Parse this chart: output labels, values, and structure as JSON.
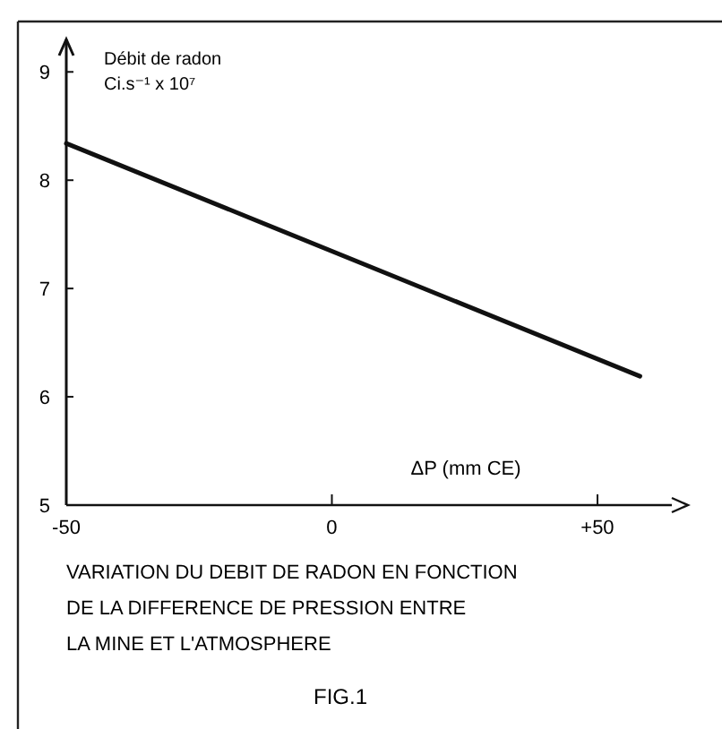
{
  "chart_data": {
    "type": "line",
    "ylabel": "Débit de radon\nCi.s⁻¹ x 10⁷",
    "xlabel": "ΔP (mm CE)",
    "x": [
      -50,
      58
    ],
    "series": [
      {
        "color": "#111111",
        "values": [
          8.34,
          6.19
        ]
      }
    ],
    "xlim": [
      -50,
      64
    ],
    "ylim": [
      5,
      9.3
    ],
    "xticks": [
      {
        "value": -50,
        "label": "-50"
      },
      0,
      {
        "value": 50,
        "label": "+50"
      }
    ],
    "yticks": [
      5,
      6,
      7,
      8,
      9
    ],
    "grid": false,
    "marker": "none",
    "line_style": "solid",
    "annotations": [
      "VARIATION DU DEBIT DE RADON EN FONCTION\nDE LA DIFFERENCE DE PRESSION ENTRE\nLA MINE ET L'ATMOSPHERE",
      "FIG.1"
    ]
  }
}
